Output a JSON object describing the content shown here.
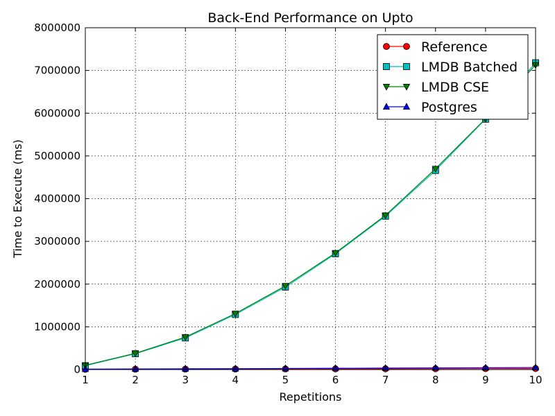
{
  "chart_data": {
    "type": "line",
    "title": "Back-End Performance on  Upto",
    "xlabel": "Repetitions",
    "ylabel": "Time to Execute (ms)",
    "xlim": [
      1,
      10
    ],
    "ylim": [
      0,
      8000000
    ],
    "x": [
      1,
      2,
      3,
      4,
      5,
      6,
      7,
      8,
      9,
      10
    ],
    "xticks": [
      "1",
      "2",
      "3",
      "4",
      "5",
      "6",
      "7",
      "8",
      "9",
      "10"
    ],
    "yticks": [
      "0",
      "1000000",
      "2000000",
      "3000000",
      "4000000",
      "5000000",
      "6000000",
      "7000000",
      "8000000"
    ],
    "grid": true,
    "legend_position": "top-right",
    "series": [
      {
        "name": "Reference",
        "color": "#ff0000",
        "marker": "circle",
        "values": [
          5000,
          8000,
          10000,
          12000,
          14000,
          15000,
          17000,
          19000,
          21000,
          23000
        ]
      },
      {
        "name": "LMDB Batched",
        "color": "#00bfbf",
        "marker": "square",
        "values": [
          90000,
          370000,
          740000,
          1290000,
          1930000,
          2710000,
          3590000,
          4660000,
          5860000,
          7180000
        ]
      },
      {
        "name": "LMDB CSE",
        "color": "#008000",
        "marker": "triangle-down",
        "values": [
          100000,
          380000,
          760000,
          1310000,
          1960000,
          2730000,
          3610000,
          4700000,
          5870000,
          7130000
        ]
      },
      {
        "name": "Postgres",
        "color": "#0000ff",
        "marker": "triangle-up",
        "values": [
          10000,
          15000,
          18000,
          20000,
          25000,
          30000,
          34000,
          38000,
          42000,
          48000
        ]
      }
    ]
  }
}
